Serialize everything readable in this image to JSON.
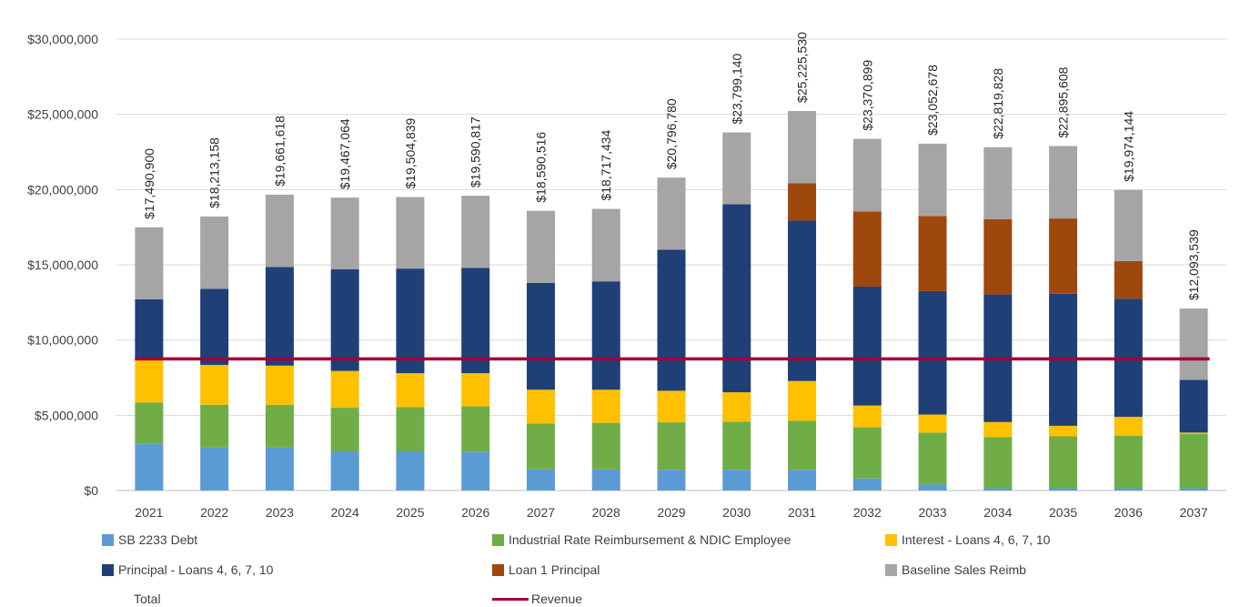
{
  "chart_data": {
    "type": "bar",
    "stacked": true,
    "categories": [
      "2021",
      "2022",
      "2023",
      "2024",
      "2025",
      "2026",
      "2027",
      "2028",
      "2029",
      "2030",
      "2031",
      "2032",
      "2033",
      "2034",
      "2035",
      "2036",
      "2037"
    ],
    "ylim": [
      0,
      30000000
    ],
    "yticks": [
      "$0",
      "$5,000,000",
      "$10,000,000",
      "$15,000,000",
      "$20,000,000",
      "$25,000,000",
      "$30,000,000"
    ],
    "grid": true,
    "legend_position": "bottom",
    "series": [
      {
        "name": "SB 2233 Debt",
        "color": "#5b9bd5",
        "values": [
          3100000,
          2850000,
          2850000,
          2600000,
          2600000,
          2550000,
          1400000,
          1400000,
          1380000,
          1380000,
          1380000,
          800000,
          400000,
          150000,
          150000,
          150000,
          150000
        ]
      },
      {
        "name": "Industrial Rate Reimbursement & NDIC Employee",
        "color": "#70ad47",
        "values": [
          2750000,
          2850000,
          2850000,
          2900000,
          2950000,
          3050000,
          3050000,
          3100000,
          3150000,
          3200000,
          3250000,
          3400000,
          3450000,
          3400000,
          3450000,
          3500000,
          3600000
        ]
      },
      {
        "name": "Interest - Loans 4, 6, 7, 10",
        "color": "#ffc000",
        "values": [
          2800000,
          2650000,
          2600000,
          2450000,
          2250000,
          2200000,
          2250000,
          2200000,
          2100000,
          1950000,
          2650000,
          1450000,
          1200000,
          1000000,
          700000,
          1250000,
          100000
        ]
      },
      {
        "name": "Principal - Loans 4, 6, 7, 10",
        "color": "#1f3f77",
        "values": [
          4060000,
          5050000,
          6560000,
          6750000,
          6950000,
          7000000,
          7100000,
          7200000,
          9380000,
          12500000,
          10650000,
          7900000,
          8200000,
          8480000,
          8780000,
          7850000,
          3500000
        ]
      },
      {
        "name": "Loan 1 Principal",
        "color": "#9e480e",
        "values": [
          0,
          0,
          0,
          0,
          0,
          0,
          0,
          0,
          0,
          0,
          2500000,
          5000000,
          5000000,
          5000000,
          5000000,
          2500000,
          0
        ]
      },
      {
        "name": "Baseline Sales Reimb",
        "color": "#a5a5a5",
        "values": [
          4780900,
          4813158,
          4801618,
          4767064,
          4754839,
          4790817,
          4790516,
          4817434,
          4786780,
          4769140,
          4795530,
          4820899,
          4802678,
          4789828,
          4815608,
          4724144,
          4743539
        ]
      }
    ],
    "totals": {
      "name": "Total",
      "labels": [
        "$17,490,900",
        "$18,213,158",
        "$19,661,618",
        "$19,467,064",
        "$19,504,839",
        "$19,590,817",
        "$18,590,516",
        "$18,717,434",
        "$20,796,780",
        "$23,799,140",
        "$25,225,530",
        "$23,370,899",
        "$23,052,678",
        "$22,819,828",
        "$22,895,608",
        "$19,974,144",
        "$12,093,539"
      ],
      "values": [
        17490900,
        18213158,
        19661618,
        19467064,
        19504839,
        19590817,
        18590516,
        18717434,
        20796780,
        23799140,
        25225530,
        23370899,
        23052678,
        22819828,
        22895608,
        19974144,
        12093539
      ]
    },
    "revenue": {
      "name": "Revenue",
      "color": "#a50034",
      "value": 8750000
    }
  },
  "legend": {
    "items": [
      {
        "label": "SB 2233 Debt",
        "kind": "box",
        "color": "#5b9bd5"
      },
      {
        "label": "Industrial Rate Reimbursement & NDIC Employee",
        "kind": "box",
        "color": "#70ad47"
      },
      {
        "label": "Interest - Loans 4, 6, 7, 10",
        "kind": "box",
        "color": "#ffc000"
      },
      {
        "label": "Principal - Loans 4, 6, 7, 10",
        "kind": "box",
        "color": "#1f3f77"
      },
      {
        "label": "Loan 1 Principal",
        "kind": "box",
        "color": "#9e480e"
      },
      {
        "label": "Baseline Sales Reimb",
        "kind": "box",
        "color": "#a5a5a5"
      },
      {
        "label": "Total",
        "kind": "none",
        "color": ""
      },
      {
        "label": "Revenue",
        "kind": "line",
        "color": "#a50034"
      }
    ]
  }
}
